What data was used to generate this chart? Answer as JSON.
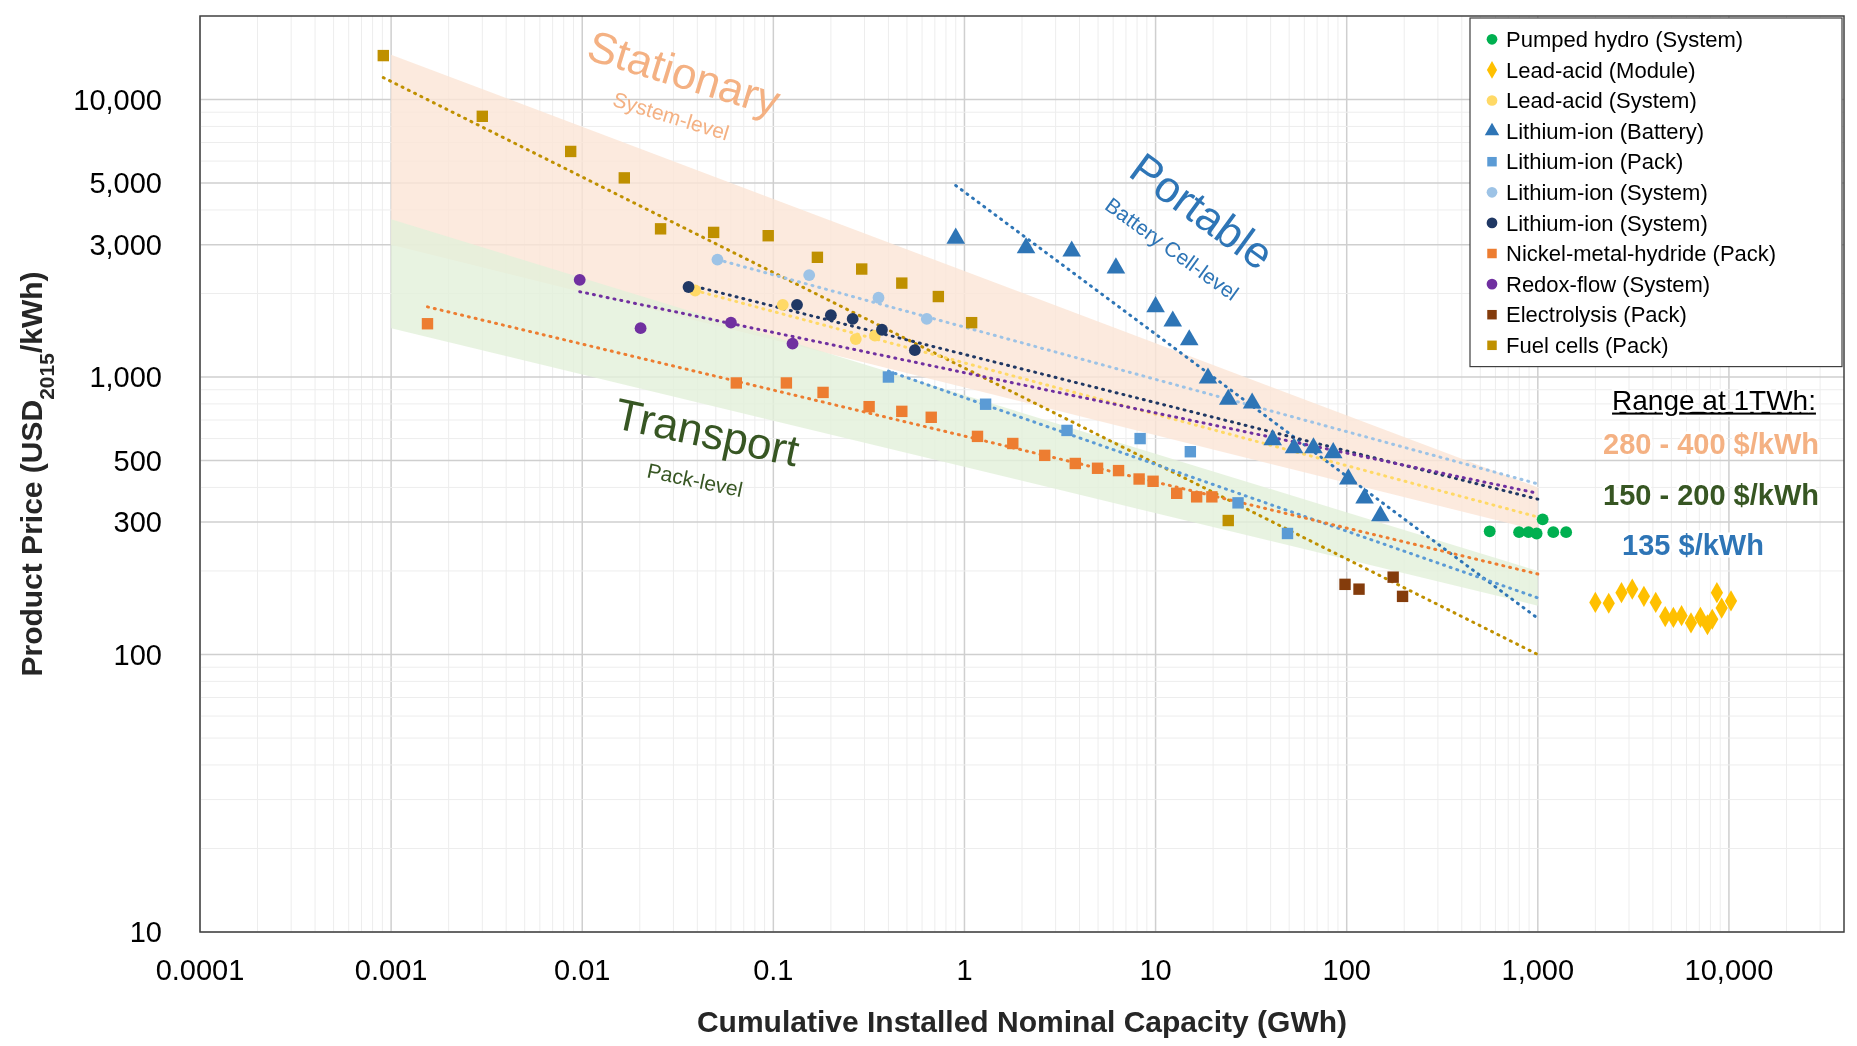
{
  "chart_data": {
    "type": "scatter",
    "xlabel": "Cumulative Installed Nominal Capacity (GWh)",
    "ylabel": "Product Price (USD$_{2015}$/kWh)",
    "log": "xy",
    "grid": true,
    "legend": "top right",
    "xlim": [
      0.0001,
      40000
    ],
    "ylim": [
      10,
      20000
    ],
    "xticks": [
      0.0001,
      {
        "value": 0.0002,
        "label": null
      },
      {
        "value": 0.0003,
        "label": null
      },
      {
        "value": 0.0004,
        "label": null
      },
      {
        "value": 0.0005,
        "label": null
      },
      {
        "value": 0.0006,
        "label": null
      },
      {
        "value": 0.0007,
        "label": null
      },
      {
        "value": 0.0008,
        "label": null
      },
      {
        "value": 0.0009,
        "label": null
      },
      0.001,
      {
        "value": 0.002,
        "label": null
      },
      {
        "value": 0.003,
        "label": null
      },
      {
        "value": 0.004,
        "label": null
      },
      {
        "value": 0.005,
        "label": null
      },
      {
        "value": 0.006,
        "label": null
      },
      {
        "value": 0.007,
        "label": null
      },
      {
        "value": 0.008,
        "label": null
      },
      {
        "value": 0.009,
        "label": null
      },
      0.01,
      {
        "value": 0.02,
        "label": null
      },
      {
        "value": 0.03,
        "label": null
      },
      {
        "value": 0.04,
        "label": null
      },
      {
        "value": 0.05,
        "label": null
      },
      {
        "value": 0.06,
        "label": null
      },
      {
        "value": 0.07,
        "label": null
      },
      {
        "value": 0.08,
        "label": null
      },
      {
        "value": 0.09,
        "label": null
      },
      0.1,
      {
        "value": 0.2,
        "label": null
      },
      {
        "value": 0.3,
        "label": null
      },
      {
        "value": 0.4,
        "label": null
      },
      {
        "value": 0.5,
        "label": null
      },
      {
        "value": 0.6,
        "label": null
      },
      {
        "value": 0.7,
        "label": null
      },
      {
        "value": 0.8,
        "label": null
      },
      {
        "value": 0.9,
        "label": null
      },
      1,
      {
        "value": 2,
        "label": null
      },
      {
        "value": 3,
        "label": null
      },
      {
        "value": 4,
        "label": null
      },
      {
        "value": 5,
        "label": null
      },
      {
        "value": 6,
        "label": null
      },
      {
        "value": 7,
        "label": null
      },
      {
        "value": 8,
        "label": null
      },
      {
        "value": 9,
        "label": null
      },
      10,
      {
        "value": 20,
        "label": null
      },
      {
        "value": 30,
        "label": null
      },
      {
        "value": 40,
        "label": null
      },
      {
        "value": 50,
        "label": null
      },
      {
        "value": 60,
        "label": null
      },
      {
        "value": 70,
        "label": null
      },
      {
        "value": 80,
        "label": null
      },
      {
        "value": 90,
        "label": null
      },
      100,
      {
        "value": 200,
        "label": null
      },
      {
        "value": 300,
        "label": null
      },
      {
        "value": 400,
        "label": null
      },
      {
        "value": 500,
        "label": null
      },
      {
        "value": 600,
        "label": null
      },
      {
        "value": 700,
        "label": null
      },
      {
        "value": 800,
        "label": null
      },
      {
        "value": 900,
        "label": null
      },
      {
        "value": 1000,
        "label": "1,000"
      },
      {
        "value": 2000,
        "label": null
      },
      {
        "value": 3000,
        "label": null
      },
      {
        "value": 4000,
        "label": null
      },
      {
        "value": 5000,
        "label": null
      },
      {
        "value": 6000,
        "label": null
      },
      {
        "value": 7000,
        "label": null
      },
      {
        "value": 8000,
        "label": null
      },
      {
        "value": 9000,
        "label": null
      },
      {
        "value": 10000,
        "label": "10,000"
      },
      {
        "value": 20000,
        "label": null
      },
      {
        "value": 30000,
        "label": null
      }
    ],
    "yticks": [
      10,
      {
        "value": 20,
        "label": null
      },
      {
        "value": 30,
        "label": null
      },
      {
        "value": 40,
        "label": null
      },
      {
        "value": 50,
        "label": null
      },
      {
        "value": 60,
        "label": null
      },
      {
        "value": 70,
        "label": null
      },
      {
        "value": 80,
        "label": null
      },
      {
        "value": 90,
        "label": null
      },
      100,
      {
        "value": 200,
        "label": null
      },
      300,
      {
        "value": 400,
        "label": null
      },
      500,
      {
        "value": 600,
        "label": null
      },
      {
        "value": 700,
        "label": null
      },
      {
        "value": 800,
        "label": null
      },
      {
        "value": 900,
        "label": null
      },
      {
        "value": 1000,
        "label": "1,000"
      },
      {
        "value": 2000,
        "label": null
      },
      {
        "value": 3000,
        "label": "3,000"
      },
      {
        "value": 4000,
        "label": null
      },
      {
        "value": 5000,
        "label": "5,000"
      },
      {
        "value": 6000,
        "label": null
      },
      {
        "value": 7000,
        "label": null
      },
      {
        "value": 8000,
        "label": null
      },
      {
        "value": 9000,
        "label": null
      },
      {
        "value": 10000,
        "label": "10,000"
      }
    ],
    "series": [
      {
        "type": "line",
        "color": "#fbe5d6",
        "x": [
          0.001,
          1000
        ],
        "values": [
          null,
          null
        ],
        "upper": [
          14500,
          400
        ],
        "lower": [
          3000,
          280
        ]
      },
      {
        "type": "line",
        "color": "#e2f0d9",
        "x": [
          0.001,
          1000
        ],
        "values": [
          null,
          null
        ],
        "upper": [
          3700,
          200
        ],
        "lower": [
          1500,
          150
        ]
      },
      {
        "type": "line",
        "line_style": "dotted",
        "marker": "none",
        "color": "#bf9000",
        "x": [
          0.00091,
          1000
        ],
        "values": [
          12000,
          100
        ]
      },
      {
        "type": "line",
        "line_style": "dotted",
        "marker": "none",
        "color": "#2e75b6",
        "x": [
          0.9,
          1000
        ],
        "values": [
          4900,
          135
        ]
      },
      {
        "type": "line",
        "line_style": "dotted",
        "marker": "none",
        "color": "#5b9bd5",
        "x": [
          0.4,
          1000
        ],
        "values": [
          1050,
          160
        ]
      },
      {
        "type": "line",
        "line_style": "dotted",
        "marker": "none",
        "color": "#9dc3e6",
        "x": [
          0.051,
          1000
        ],
        "values": [
          2650,
          412
        ]
      },
      {
        "type": "line",
        "line_style": "dotted",
        "marker": "none",
        "color": "#203864",
        "x": [
          0.036,
          1000
        ],
        "values": [
          2150,
          363
        ]
      },
      {
        "type": "line",
        "line_style": "dotted",
        "marker": "none",
        "color": "#ffd966",
        "x": [
          0.039,
          1000
        ],
        "values": [
          2050,
          313
        ]
      },
      {
        "type": "line",
        "line_style": "dotted",
        "marker": "none",
        "color": "#ed7d31",
        "x": [
          0.00155,
          1000
        ],
        "values": [
          1790,
          195
        ]
      },
      {
        "type": "line",
        "line_style": "dotted",
        "marker": "none",
        "color": "#7030a0",
        "x": [
          0.0097,
          1000
        ],
        "values": [
          2030,
          381
        ]
      },
      {
        "name": "Pumped hydro (System)",
        "marker": "circle",
        "color": "#00b050",
        "x": [
          560,
          798,
          894,
          986,
          1060,
          1205,
          1407
        ],
        "values": [
          278,
          276,
          276,
          273,
          307,
          276,
          276
        ]
      },
      {
        "name": "Lead-acid (Module)",
        "marker": "diamond",
        "color": "#ffc000",
        "x": [
          2000,
          2350,
          2740,
          3120,
          3590,
          4140,
          4640,
          5120,
          5650,
          6330,
          7090,
          7720,
          8180,
          8650,
          9160,
          10250
        ],
        "values": [
          154,
          153,
          167,
          172,
          162,
          154,
          137,
          136,
          138,
          130,
          136,
          128,
          134,
          167,
          147,
          156
        ]
      },
      {
        "name": "Lead-acid (System)",
        "marker": "circle",
        "color": "#ffd966",
        "x": [
          0.039,
          0.112,
          0.27,
          0.34
        ],
        "values": [
          2050,
          1820,
          1370,
          1410
        ]
      },
      {
        "name": "Lithium-ion (Battery)",
        "marker": "triangle",
        "color": "#2e75b6",
        "x": [
          0.9,
          2.1,
          3.64,
          6.2,
          10,
          12.3,
          15,
          18.8,
          24,
          32,
          41,
          53,
          67,
          85,
          102,
          124,
          150
        ],
        "values": [
          3160,
          2920,
          2840,
          2470,
          1790,
          1590,
          1360,
          990,
          830,
          805,
          594,
          555,
          555,
          533,
          429,
          366,
          316
        ]
      },
      {
        "name": "Lithium-ion (Pack)",
        "marker": "square",
        "color": "#5b9bd5",
        "x": [
          0.4,
          1.29,
          3.44,
          8.3,
          15.2,
          27,
          49
        ],
        "values": [
          1000,
          798,
          642,
          600,
          538,
          352,
          273
        ]
      },
      {
        "name": "Lithium-ion (System)",
        "marker": "circle",
        "color": "#9dc3e6",
        "x": [
          0.051,
          0.154,
          0.355,
          0.635
        ],
        "values": [
          2650,
          2330,
          1930,
          1620
        ]
      },
      {
        "name": "Lithium-ion (System)",
        "marker": "circle",
        "color": "#203864",
        "x": [
          0.036,
          0.133,
          0.2,
          0.26,
          0.37,
          0.55
        ],
        "values": [
          2110,
          1820,
          1670,
          1620,
          1480,
          1250
        ]
      },
      {
        "name": "Nickel-metal-hydride (Pack)",
        "marker": "square",
        "color": "#ed7d31",
        "x": [
          0.00155,
          0.064,
          0.117,
          0.182,
          0.317,
          0.47,
          0.67,
          1.17,
          1.79,
          2.63,
          3.8,
          4.97,
          6.4,
          8.2,
          9.7,
          12.9,
          16.4,
          19.7
        ],
        "values": [
          1556,
          952,
          952,
          880,
          782,
          752,
          716,
          611,
          576,
          522,
          488,
          469,
          460,
          429,
          421,
          381,
          370,
          370
        ]
      },
      {
        "name": "Redox-flow (System)",
        "marker": "circle",
        "color": "#7030a0",
        "x": [
          0.0097,
          0.0202,
          0.06,
          0.126
        ],
        "values": [
          2240,
          1500,
          1570,
          1320
        ]
      },
      {
        "name": "Electrolysis (Pack)",
        "marker": "square",
        "color": "#843c0c",
        "x": [
          98,
          116,
          175,
          196
        ],
        "values": [
          179,
          172,
          190,
          162
        ]
      },
      {
        "name": "Fuel cells (Pack)",
        "marker": "square",
        "color": "#bf9000",
        "x": [
          0.00091,
          0.003,
          0.0087,
          0.0166,
          0.0257,
          0.0487,
          0.094,
          0.17,
          0.29,
          0.47,
          0.73,
          1.09,
          24
        ],
        "values": [
          14400,
          8700,
          6500,
          5220,
          3420,
          3320,
          3230,
          2700,
          2450,
          2180,
          1950,
          1570,
          304
        ]
      }
    ],
    "annotations": [
      "Stationary",
      "System-level",
      "Portable",
      "Battery Cell-level",
      "Transport",
      "Pack-level",
      "Range at 1TWh:",
      "280 - 400 $/kWh",
      "150 - 200 $/kWh",
      "135 $/kWh"
    ]
  }
}
